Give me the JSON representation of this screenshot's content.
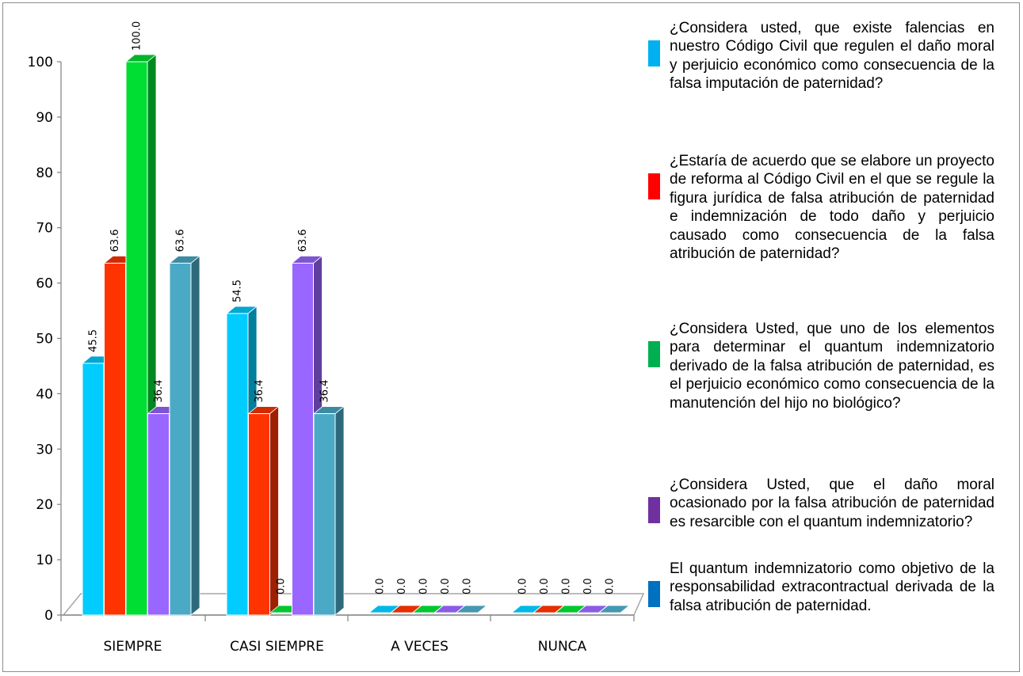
{
  "chart_data": {
    "type": "bar",
    "categories": [
      "SIEMPRE",
      "CASI SIEMPRE",
      "A VECES",
      "NUNCA"
    ],
    "ylim": [
      0,
      100
    ],
    "yticks": [
      0,
      10,
      20,
      30,
      40,
      50,
      60,
      70,
      80,
      90,
      100
    ],
    "grid": false,
    "legend_position": "right",
    "series": [
      {
        "name": "¿Considera usted, que existe falencias en nuestro Código Civil que regulen el daño moral y perjuicio económico como consecuencia de la falsa imputación de paternidad?",
        "color": "#00ccff",
        "values": [
          45.5,
          54.5,
          0.0,
          0.0
        ],
        "labels": [
          "45.5",
          "54.5",
          "0.0",
          "0.0"
        ]
      },
      {
        "name": "¿Estaría de acuerdo que se elabore un proyecto de reforma al Código Civil en el que se regule la figura jurídica de falsa atribución de paternidad e indemnización de todo daño y perjuicio causado como consecuencia de la falsa atribución de paternidad?",
        "color": "#ff3300",
        "values": [
          63.6,
          36.4,
          0.0,
          0.0
        ],
        "labels": [
          "63.6",
          "36.4",
          "0.0",
          "0.0"
        ]
      },
      {
        "name": "¿Considera Usted, que uno de los elementos para determinar el quantum indemnizatorio derivado de la falsa atribución de paternidad, es el perjuicio económico como consecuencia de la manutención del hijo no biológico?",
        "color": "#00dd33",
        "values": [
          100.0,
          0.0,
          0.0,
          0.0
        ],
        "labels": [
          "100.0",
          "0.0",
          "0.0",
          "0.0"
        ]
      },
      {
        "name": "¿Considera Usted, que el daño moral ocasionado por la falsa atribución de paternidad es resarcible con el quantum indemnizatorio?",
        "color": "#9966ff",
        "values": [
          36.4,
          63.6,
          0.0,
          0.0
        ],
        "labels": [
          "36.4",
          "63.6",
          "0.0",
          "0.0"
        ]
      },
      {
        "name": "El quantum indemnizatorio como objetivo de la responsabilidad extracontractual derivada de la falsa atribución de paternidad.",
        "color": "#4aaac6",
        "values": [
          63.6,
          36.4,
          0.0,
          0.0
        ],
        "labels": [
          "63.6",
          "36.4",
          "0.0",
          "0.0"
        ]
      }
    ]
  },
  "legend": {
    "swatch_colors": [
      "#00b0f0",
      "#ff0000",
      "#00b050",
      "#7030a0",
      "#0070c0"
    ]
  }
}
